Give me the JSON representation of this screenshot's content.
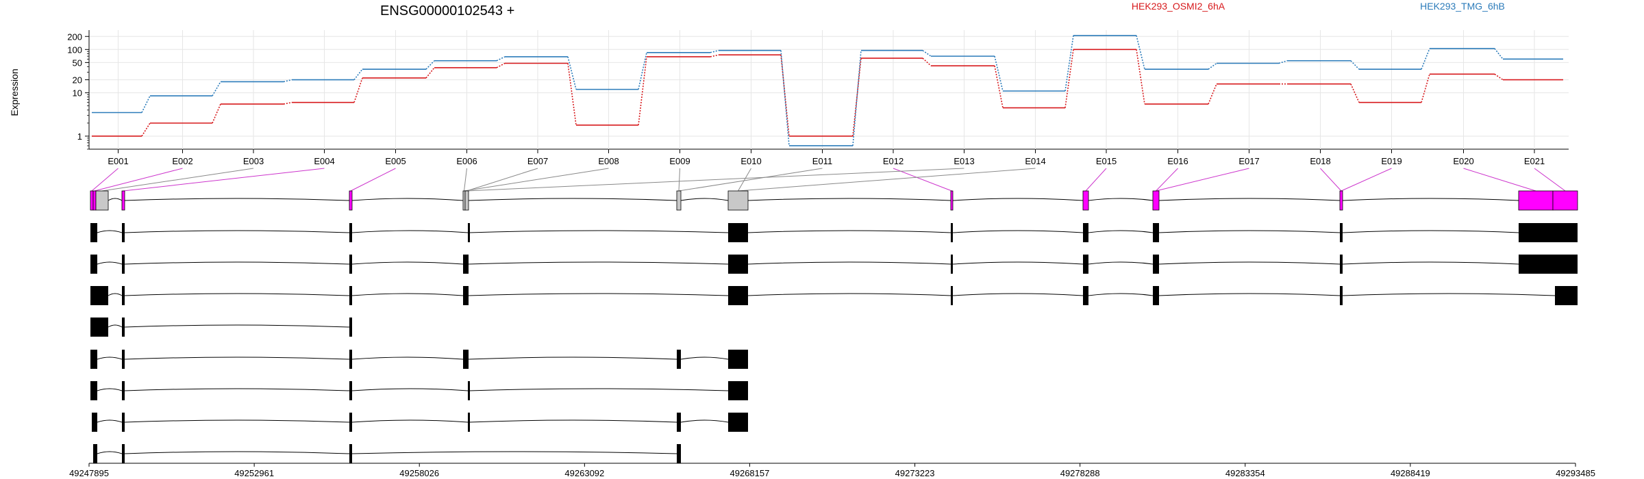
{
  "colors": {
    "osmi": "#d7191c",
    "tmg": "#2b7bba",
    "exon_sig": "#ff00ff",
    "exon_ns": "#c8c8c8",
    "grid": "#e6e6e6"
  },
  "chart_data": {
    "type": "line",
    "title": "ENSG00000102543 +",
    "ylabel": "Expression",
    "y_scale": "log",
    "ylim": [
      0.5,
      280
    ],
    "y_ticks": [
      1,
      10,
      20,
      50,
      100,
      200
    ],
    "categories": [
      "E001",
      "E002",
      "E003",
      "E004",
      "E005",
      "E006",
      "E007",
      "E008",
      "E009",
      "E010",
      "E011",
      "E012",
      "E013",
      "E014",
      "E015",
      "E016",
      "E017",
      "E018",
      "E019",
      "E020",
      "E021"
    ],
    "series": [
      {
        "name": "HEK293_OSMI2_6hA",
        "color": "#d7191c",
        "values": [
          1,
          2,
          5.5,
          6,
          22,
          38,
          48,
          1.8,
          68,
          75,
          1,
          63,
          42,
          4.5,
          100,
          5.5,
          16,
          16,
          6,
          27,
          20
        ]
      },
      {
        "name": "HEK293_TMG_6hB",
        "color": "#2b7bba",
        "values": [
          3.5,
          8.5,
          18,
          20,
          35,
          55,
          68,
          12,
          85,
          95,
          0.6,
          95,
          70,
          11,
          210,
          35,
          48,
          55,
          35,
          105,
          60
        ]
      }
    ],
    "genomic_axis": {
      "ticks": [
        "49247895",
        "49252961",
        "49258026",
        "49263092",
        "49268157",
        "49273223",
        "49278288",
        "49283354",
        "49288419",
        "49293485"
      ]
    }
  }
}
